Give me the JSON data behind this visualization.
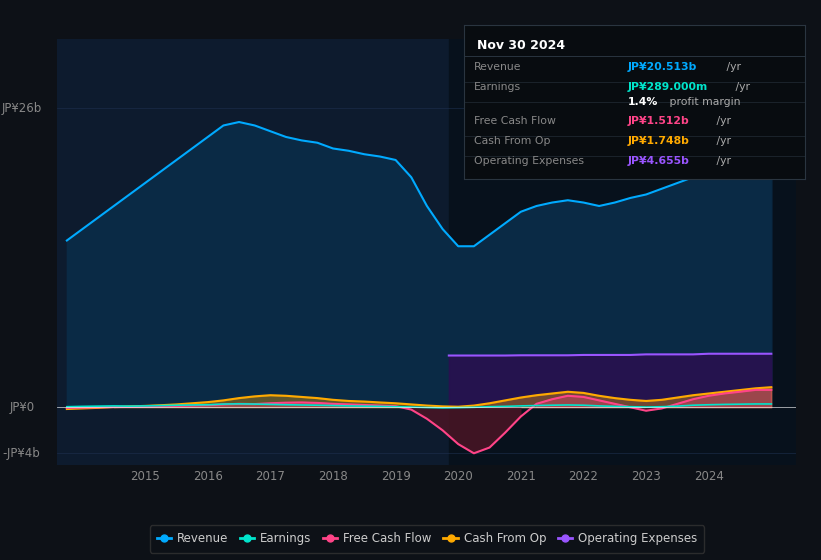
{
  "bg_color": "#0d1117",
  "plot_bg_color": "#0d1b2e",
  "ylim": [
    -5000000000.0,
    32000000000.0
  ],
  "xlim_left": 2013.6,
  "xlim_right": 2025.4,
  "y_zero": 0,
  "y_26b": 26000000000.0,
  "y_neg4b": -4000000000.0,
  "revenue_color": "#00aaff",
  "revenue_fill": "#0a2a45",
  "earnings_color": "#00e5cc",
  "fcf_color": "#ff4488",
  "fcf_fill_neg": "#4a1525",
  "cashop_color": "#ffaa00",
  "opex_color": "#9955ff",
  "opex_fill": "#2a1050",
  "highlight_start": 2019.85,
  "xticks": [
    2015,
    2016,
    2017,
    2018,
    2019,
    2020,
    2021,
    2022,
    2023,
    2024
  ],
  "legend_items": [
    {
      "label": "Revenue",
      "color": "#00aaff"
    },
    {
      "label": "Earnings",
      "color": "#00e5cc"
    },
    {
      "label": "Free Cash Flow",
      "color": "#ff4488"
    },
    {
      "label": "Cash From Op",
      "color": "#ffaa00"
    },
    {
      "label": "Operating Expenses",
      "color": "#9955ff"
    }
  ],
  "info_title": "Nov 30 2024",
  "info_rows": [
    {
      "label": "Revenue",
      "value": "JP¥20.513b",
      "suffix": " /yr",
      "value_color": "#00aaff"
    },
    {
      "label": "Earnings",
      "value": "JP¥289.000m",
      "suffix": " /yr",
      "value_color": "#00e5cc"
    },
    {
      "label": "",
      "value": "1.4%",
      "suffix": " profit margin",
      "value_color": "#ffffff"
    },
    {
      "label": "Free Cash Flow",
      "value": "JP¥1.512b",
      "suffix": " /yr",
      "value_color": "#ff4488"
    },
    {
      "label": "Cash From Op",
      "value": "JP¥1.748b",
      "suffix": " /yr",
      "value_color": "#ffaa00"
    },
    {
      "label": "Operating Expenses",
      "value": "JP¥4.655b",
      "suffix": " /yr",
      "value_color": "#9955ff"
    }
  ],
  "years": [
    2013.75,
    2014.0,
    2014.25,
    2014.5,
    2014.75,
    2015.0,
    2015.25,
    2015.5,
    2015.75,
    2016.0,
    2016.25,
    2016.5,
    2016.75,
    2017.0,
    2017.25,
    2017.5,
    2017.75,
    2018.0,
    2018.25,
    2018.5,
    2018.75,
    2019.0,
    2019.25,
    2019.5,
    2019.75,
    2020.0,
    2020.25,
    2020.5,
    2020.75,
    2021.0,
    2021.25,
    2021.5,
    2021.75,
    2022.0,
    2022.25,
    2022.5,
    2022.75,
    2023.0,
    2023.25,
    2023.5,
    2023.75,
    2024.0,
    2024.25,
    2024.5,
    2024.75,
    2025.0
  ],
  "revenue": [
    14500000000.0,
    15500000000.0,
    16500000000.0,
    17500000000.0,
    18500000000.0,
    19500000000.0,
    20500000000.0,
    21500000000.0,
    22500000000.0,
    23500000000.0,
    24500000000.0,
    24800000000.0,
    24500000000.0,
    24000000000.0,
    23500000000.0,
    23200000000.0,
    23000000000.0,
    22500000000.0,
    22300000000.0,
    22000000000.0,
    21800000000.0,
    21500000000.0,
    20000000000.0,
    17500000000.0,
    15500000000.0,
    14000000000.0,
    14000000000.0,
    15000000000.0,
    16000000000.0,
    17000000000.0,
    17500000000.0,
    17800000000.0,
    18000000000.0,
    17800000000.0,
    17500000000.0,
    17800000000.0,
    18200000000.0,
    18500000000.0,
    19000000000.0,
    19500000000.0,
    20000000000.0,
    20100000000.0,
    20200000000.0,
    20400000000.0,
    20513000000.0,
    20513000000.0
  ],
  "earnings": [
    50000000.0,
    80000000.0,
    100000000.0,
    120000000.0,
    100000000.0,
    120000000.0,
    150000000.0,
    180000000.0,
    200000000.0,
    220000000.0,
    280000000.0,
    300000000.0,
    280000000.0,
    250000000.0,
    220000000.0,
    200000000.0,
    180000000.0,
    150000000.0,
    120000000.0,
    100000000.0,
    80000000.0,
    50000000.0,
    20000000.0,
    -20000000.0,
    -50000000.0,
    -30000000.0,
    0.0,
    50000000.0,
    80000000.0,
    120000000.0,
    150000000.0,
    180000000.0,
    200000000.0,
    180000000.0,
    120000000.0,
    80000000.0,
    50000000.0,
    20000000.0,
    50000000.0,
    100000000.0,
    180000000.0,
    220000000.0,
    250000000.0,
    270000000.0,
    289000000.0,
    289000000.0
  ],
  "fcf": [
    -50000000.0,
    -30000000.0,
    0.0,
    20000000.0,
    30000000.0,
    50000000.0,
    80000000.0,
    120000000.0,
    150000000.0,
    180000000.0,
    250000000.0,
    300000000.0,
    280000000.0,
    350000000.0,
    400000000.0,
    420000000.0,
    380000000.0,
    300000000.0,
    250000000.0,
    200000000.0,
    150000000.0,
    100000000.0,
    -200000000.0,
    -1000000000.0,
    -2000000000.0,
    -3200000000.0,
    -4000000000.0,
    -3500000000.0,
    -2200000000.0,
    -800000000.0,
    300000000.0,
    700000000.0,
    1000000000.0,
    900000000.0,
    600000000.0,
    300000000.0,
    0.0,
    -300000000.0,
    -100000000.0,
    300000000.0,
    700000000.0,
    1000000000.0,
    1200000000.0,
    1350000000.0,
    1512000000.0,
    1512000000.0
  ],
  "cashop": [
    -150000000.0,
    -100000000.0,
    -50000000.0,
    20000000.0,
    80000000.0,
    120000000.0,
    180000000.0,
    250000000.0,
    350000000.0,
    450000000.0,
    600000000.0,
    800000000.0,
    950000000.0,
    1050000000.0,
    1000000000.0,
    900000000.0,
    800000000.0,
    650000000.0,
    550000000.0,
    500000000.0,
    420000000.0,
    350000000.0,
    250000000.0,
    150000000.0,
    80000000.0,
    50000000.0,
    150000000.0,
    350000000.0,
    600000000.0,
    850000000.0,
    1050000000.0,
    1200000000.0,
    1350000000.0,
    1250000000.0,
    1000000000.0,
    800000000.0,
    650000000.0,
    550000000.0,
    650000000.0,
    850000000.0,
    1050000000.0,
    1200000000.0,
    1350000000.0,
    1500000000.0,
    1650000000.0,
    1748000000.0
  ],
  "opex_years": [
    2019.85,
    2020.0,
    2020.25,
    2020.5,
    2020.75,
    2021.0,
    2021.25,
    2021.5,
    2021.75,
    2022.0,
    2022.25,
    2022.5,
    2022.75,
    2023.0,
    2023.25,
    2023.5,
    2023.75,
    2024.0,
    2024.25,
    2024.5,
    2024.75,
    2025.0
  ],
  "opex": [
    4500000000.0,
    4500000000.0,
    4500000000.0,
    4500000000.0,
    4500000000.0,
    4520000000.0,
    4520000000.0,
    4520000000.0,
    4520000000.0,
    4550000000.0,
    4550000000.0,
    4550000000.0,
    4550000000.0,
    4600000000.0,
    4600000000.0,
    4600000000.0,
    4600000000.0,
    4655000000.0,
    4655000000.0,
    4655000000.0,
    4655000000.0,
    4655000000.0
  ]
}
